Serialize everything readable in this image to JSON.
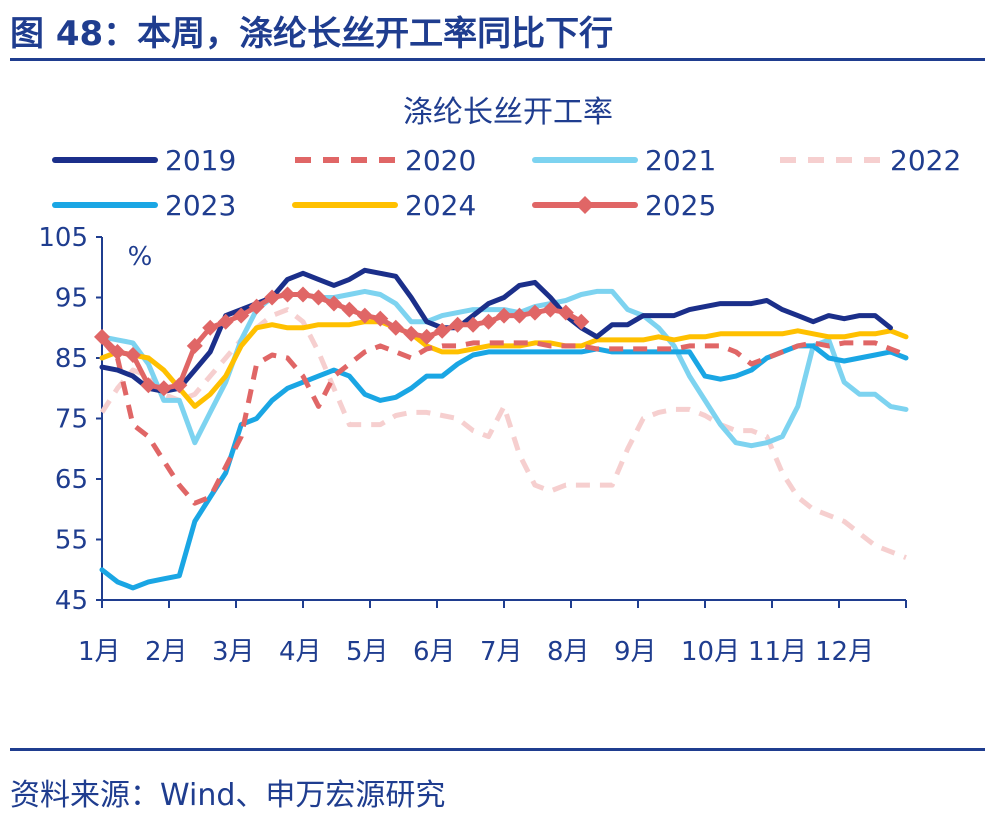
{
  "figure": {
    "title": "图 48：本周，涤纶长丝开工率同比下行",
    "source": "资料来源：Wind、申万宏源研究"
  },
  "chart_data": {
    "type": "line",
    "title": "涤纶长丝开工率",
    "ylabel": "%",
    "ylim": [
      45,
      105
    ],
    "yticks": [
      45,
      55,
      65,
      75,
      85,
      95,
      105
    ],
    "xlabels": [
      "1月",
      "2月",
      "3月",
      "4月",
      "5月",
      "6月",
      "7月",
      "8月",
      "9月",
      "10月",
      "11月",
      "12月"
    ],
    "xlim": [
      1,
      53
    ],
    "legend_position": "top",
    "series": [
      {
        "name": "2019",
        "color": "#1b2f8a",
        "style": "solid",
        "x": [
          1,
          2,
          3,
          4,
          5,
          6,
          7,
          8,
          9,
          10,
          11,
          12,
          13,
          14,
          15,
          16,
          17,
          18,
          19,
          20,
          21,
          22,
          23,
          24,
          25,
          26,
          27,
          28,
          29,
          30,
          31,
          32,
          33,
          34,
          35,
          36,
          37,
          38,
          39,
          40,
          41,
          42,
          43,
          44,
          45,
          46,
          47,
          48,
          49,
          50,
          51,
          52
        ],
        "y": [
          83.5,
          83,
          82,
          80,
          79.5,
          80,
          83,
          86,
          92,
          93,
          94,
          95,
          98,
          99,
          98,
          97,
          98,
          99.5,
          99,
          98.5,
          95,
          91,
          90,
          90,
          92,
          94,
          95,
          97,
          97.5,
          95,
          92,
          90,
          88.5,
          90.5,
          90.5,
          92,
          92,
          92,
          93,
          93.5,
          94,
          94,
          94,
          94.5,
          93,
          92,
          91,
          92,
          91.5,
          92,
          92,
          90
        ]
      },
      {
        "name": "2020",
        "color": "#e06666",
        "style": "dashed",
        "x": [
          1,
          2,
          3,
          4,
          5,
          6,
          7,
          8,
          9,
          10,
          11,
          12,
          13,
          14,
          15,
          16,
          17,
          18,
          19,
          20,
          21,
          22,
          23,
          24,
          25,
          26,
          27,
          28,
          29,
          30,
          31,
          32,
          33,
          34,
          35,
          36,
          37,
          38,
          39,
          40,
          41,
          42,
          43,
          44,
          45,
          46,
          47,
          48,
          49,
          50,
          51,
          52,
          53
        ],
        "y": [
          88,
          85,
          74,
          72,
          68,
          64,
          61,
          62,
          67,
          72,
          84,
          85.5,
          85,
          82,
          77,
          82,
          84,
          86,
          87,
          86,
          85,
          86.5,
          87,
          87,
          87.5,
          87.5,
          87.5,
          87.5,
          87.5,
          87,
          87,
          87,
          86.5,
          86.5,
          86.5,
          86.5,
          86.5,
          86.5,
          87,
          87,
          87,
          86,
          84,
          85,
          86,
          87,
          87.5,
          87,
          87.5,
          87.5,
          87.5,
          86.5,
          85.5
        ]
      },
      {
        "name": "2021",
        "color": "#7dd3f0",
        "style": "solid",
        "x": [
          1,
          2,
          3,
          4,
          5,
          6,
          7,
          8,
          9,
          10,
          11,
          12,
          13,
          14,
          15,
          16,
          17,
          18,
          19,
          20,
          21,
          22,
          23,
          24,
          25,
          26,
          27,
          28,
          29,
          30,
          31,
          32,
          33,
          34,
          35,
          36,
          37,
          38,
          39,
          40,
          41,
          42,
          43,
          44,
          45,
          46,
          47,
          48,
          49,
          50,
          51,
          52,
          53
        ],
        "y": [
          88.5,
          88,
          87.5,
          84,
          78,
          78,
          71,
          76,
          81,
          88,
          93,
          95,
          95.5,
          95.5,
          95,
          95,
          95.5,
          96,
          95.5,
          94,
          91,
          91,
          92,
          92.5,
          93,
          93,
          93,
          92.5,
          93.5,
          94,
          94.5,
          95.5,
          96,
          96,
          93,
          92,
          90,
          87,
          82,
          78,
          74,
          71,
          70.5,
          71,
          72,
          77,
          87,
          88,
          81,
          79,
          79,
          77,
          76.5
        ]
      },
      {
        "name": "2022",
        "color": "#f6cfcf",
        "style": "dashed",
        "x": [
          1,
          2,
          3,
          4,
          5,
          6,
          7,
          8,
          9,
          10,
          11,
          12,
          13,
          14,
          15,
          16,
          17,
          18,
          19,
          20,
          21,
          22,
          23,
          24,
          25,
          26,
          27,
          28,
          29,
          30,
          31,
          32,
          33,
          34,
          35,
          36,
          37,
          38,
          39,
          40,
          41,
          42,
          43,
          44,
          45,
          46,
          47,
          48,
          49,
          50,
          51,
          52,
          53
        ],
        "y": [
          76,
          80,
          83,
          82,
          79,
          78,
          79,
          82,
          85,
          88,
          90,
          92,
          93,
          91,
          86,
          80,
          74,
          74,
          74,
          75.5,
          76,
          76,
          75.5,
          75,
          73,
          72,
          77,
          69,
          64,
          63,
          64,
          64,
          64,
          64,
          70,
          75,
          76,
          76.5,
          76.5,
          75.5,
          74,
          73,
          73,
          72,
          66,
          62,
          60,
          59,
          58,
          56,
          54,
          53,
          52
        ]
      },
      {
        "name": "2023",
        "color": "#1aa6e4",
        "style": "solid",
        "x": [
          1,
          2,
          3,
          4,
          5,
          6,
          7,
          8,
          9,
          10,
          11,
          12,
          13,
          14,
          15,
          16,
          17,
          18,
          19,
          20,
          21,
          22,
          23,
          24,
          25,
          26,
          27,
          28,
          29,
          30,
          31,
          32,
          33,
          34,
          35,
          36,
          37,
          38,
          39,
          40,
          41,
          42,
          43,
          44,
          45,
          46,
          47,
          48,
          49,
          50,
          51,
          52,
          53
        ],
        "y": [
          50,
          48,
          47,
          48,
          48.5,
          49,
          58,
          62,
          66,
          74,
          75,
          78,
          80,
          81,
          82,
          83,
          82,
          79,
          78,
          78.5,
          80,
          82,
          82,
          84,
          85.5,
          86,
          86,
          86,
          86,
          86,
          86,
          86,
          86.5,
          86,
          86,
          86,
          86,
          86,
          86,
          82,
          81.5,
          82,
          83,
          85,
          86,
          87,
          87,
          85,
          84.5,
          85,
          85.5,
          86,
          85
        ]
      },
      {
        "name": "2024",
        "color": "#ffc000",
        "style": "solid",
        "x": [
          1,
          2,
          3,
          4,
          5,
          6,
          7,
          8,
          9,
          10,
          11,
          12,
          13,
          14,
          15,
          16,
          17,
          18,
          19,
          20,
          21,
          22,
          23,
          24,
          25,
          26,
          27,
          28,
          29,
          30,
          31,
          32,
          33,
          34,
          35,
          36,
          37,
          38,
          39,
          40,
          41,
          42,
          43,
          44,
          45,
          46,
          47,
          48,
          49,
          50,
          51,
          52,
          53
        ],
        "y": [
          85,
          86,
          85.5,
          85,
          83,
          80,
          77,
          79,
          82,
          87,
          90,
          90.5,
          90,
          90,
          90.5,
          90.5,
          90.5,
          91,
          91,
          90,
          89,
          87,
          86,
          86,
          86.5,
          87,
          87,
          87,
          87.5,
          87.5,
          87,
          87,
          88,
          88,
          88,
          88,
          88.5,
          88,
          88.5,
          88.5,
          89,
          89,
          89,
          89,
          89,
          89.5,
          89,
          88.5,
          88.5,
          89,
          89,
          89.5,
          88.5
        ]
      },
      {
        "name": "2025",
        "color": "#e06666",
        "style": "solid-marker",
        "x": [
          1,
          2,
          3,
          4,
          5,
          6,
          7,
          8,
          9,
          10,
          11,
          12,
          13,
          14,
          15,
          16,
          17,
          18,
          19,
          20,
          21,
          22,
          23,
          24,
          25,
          26,
          27,
          28,
          29,
          30,
          31,
          32
        ],
        "y": [
          88.5,
          86,
          85.5,
          80.5,
          80,
          80.5,
          87,
          90,
          91,
          92,
          93.5,
          95,
          95.5,
          95.5,
          95,
          94,
          93,
          92,
          91.5,
          90,
          89,
          88.5,
          89.5,
          90.5,
          90.5,
          91,
          92,
          92,
          92.5,
          93,
          92.5,
          91
        ]
      }
    ]
  }
}
